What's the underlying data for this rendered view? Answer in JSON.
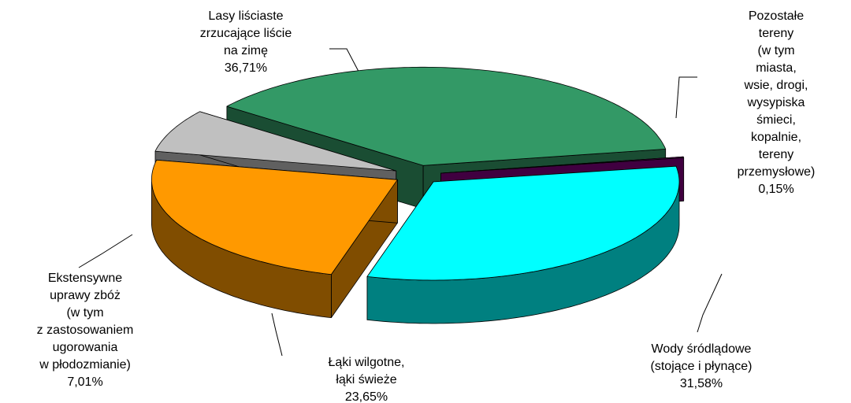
{
  "chart_data": {
    "type": "pie3d",
    "categories": [
      "Lasy liściaste\nzrzucające liście\nna zimę",
      "Pozostałe tereny\n(w tym miasta,\nwsie, drogi,\nwysypiska śmieci,\nkopalnie, tereny\nprzemysłowe)",
      "Wody śródlądowe\n(stojące i płynące)",
      "Łąki wilgotne,\nłąki świeże",
      "Ekstensywne\nuprawy zbóż\n(w tym\nz zastosowaniem\nugorowania\nw płodozmianie)"
    ],
    "values": [
      36.71,
      0.15,
      31.58,
      23.65,
      7.01
    ],
    "value_labels": [
      "36,71%",
      "0,15%",
      "31,58%",
      "23,65%",
      "7,01%"
    ],
    "colors": [
      "#339966",
      "#800080",
      "#00ffff",
      "#ff9900",
      "#c0c0c0"
    ]
  }
}
